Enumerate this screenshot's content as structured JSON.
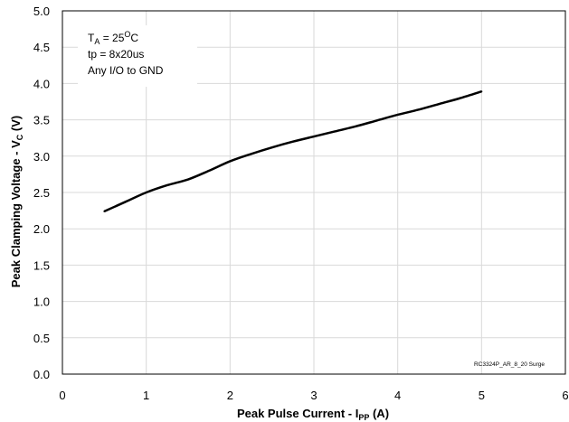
{
  "chart_data": {
    "type": "line",
    "xlabel": {
      "main": "Peak Pulse Current - I",
      "sub": "PP",
      "tail": " (A)"
    },
    "ylabel": {
      "main": "Peak Clamping Voltage - V",
      "sub": "C",
      "tail": " (V)"
    },
    "xlim": [
      0,
      6
    ],
    "ylim": [
      0,
      5
    ],
    "x_ticks": [
      0,
      1,
      2,
      3,
      4,
      5,
      6
    ],
    "x_tick_labels": [
      "0",
      "1",
      "2",
      "3",
      "4",
      "5",
      "6"
    ],
    "y_ticks": [
      0,
      0.5,
      1,
      1.5,
      2,
      2.5,
      3,
      3.5,
      4,
      4.5,
      5
    ],
    "y_tick_labels": [
      "0.0",
      "0.5",
      "1.0",
      "1.5",
      "2.0",
      "2.5",
      "3.0",
      "3.5",
      "4.0",
      "4.5",
      "5.0"
    ],
    "grid": true,
    "series": [
      {
        "color": "#000000",
        "x": [
          0.5,
          0.75,
          1.0,
          1.25,
          1.5,
          1.75,
          2.0,
          2.25,
          2.5,
          2.75,
          3.0,
          3.25,
          3.5,
          3.75,
          4.0,
          4.25,
          4.5,
          4.75,
          5.0
        ],
        "y": [
          2.24,
          2.37,
          2.5,
          2.6,
          2.68,
          2.8,
          2.93,
          3.03,
          3.12,
          3.2,
          3.27,
          3.34,
          3.41,
          3.49,
          3.57,
          3.64,
          3.72,
          3.8,
          3.89
        ]
      }
    ],
    "annotation": {
      "lines": [
        {
          "main": "T",
          "sub": "A",
          "rest": " = 25",
          "sup": "O",
          "tail": "C"
        },
        {
          "main": "tp = 8x20us"
        },
        {
          "main": "Any I/O to GND"
        }
      ]
    },
    "watermark": "RC3324P_AR_8_20 Surge"
  }
}
